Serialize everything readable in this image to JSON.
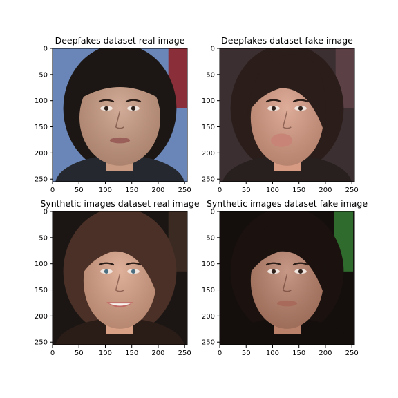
{
  "figure": {
    "panels": [
      {
        "title": "Deepfakes dataset real image",
        "subject": "face-real-man",
        "xticks": [
          "0",
          "50",
          "100",
          "150",
          "200",
          "250"
        ],
        "yticks": [
          "0",
          "50",
          "100",
          "150",
          "200",
          "250"
        ],
        "palette": {
          "bg": "#6a86b8",
          "bg2": "#8a2f3a",
          "skin": "#c99a82",
          "hair": "#1c1714",
          "suit": "#25282e",
          "lip": "#9a5f58"
        }
      },
      {
        "title": "Deepfakes dataset fake image",
        "subject": "face-fake-woman",
        "xticks": [
          "0",
          "50",
          "100",
          "150",
          "200",
          "250"
        ],
        "yticks": [
          "0",
          "50",
          "100",
          "150",
          "200",
          "250"
        ],
        "palette": {
          "bg": "#3b2f31",
          "bg2": "#5b4146",
          "skin": "#d79b83",
          "hair": "#2b1d19",
          "suit": "#27201f",
          "lip": "#c88476"
        }
      },
      {
        "title": "Synthetic images dataset real image",
        "subject": "face-real-woman-smiling",
        "xticks": [
          "0",
          "50",
          "100",
          "150",
          "200",
          "250"
        ],
        "yticks": [
          "0",
          "50",
          "100",
          "150",
          "200",
          "250"
        ],
        "palette": {
          "bg": "#1b1613",
          "bg2": "#3a2a22",
          "skin": "#d8a085",
          "hair": "#4a3026",
          "suit": "#2a1d18",
          "lip": "#c26b66"
        }
      },
      {
        "title": "Synthetic images dataset fake image",
        "subject": "face-fake-woman-dark-hair",
        "xticks": [
          "0",
          "50",
          "100",
          "150",
          "200",
          "250"
        ],
        "yticks": [
          "0",
          "50",
          "100",
          "150",
          "200",
          "250"
        ],
        "palette": {
          "bg": "#140f0d",
          "bg2": "#2f6b2d",
          "skin": "#b9816a",
          "hair": "#1b120f",
          "suit": "#140f0d",
          "lip": "#a86a5b"
        }
      }
    ],
    "axis_range": [
      0,
      255
    ]
  }
}
